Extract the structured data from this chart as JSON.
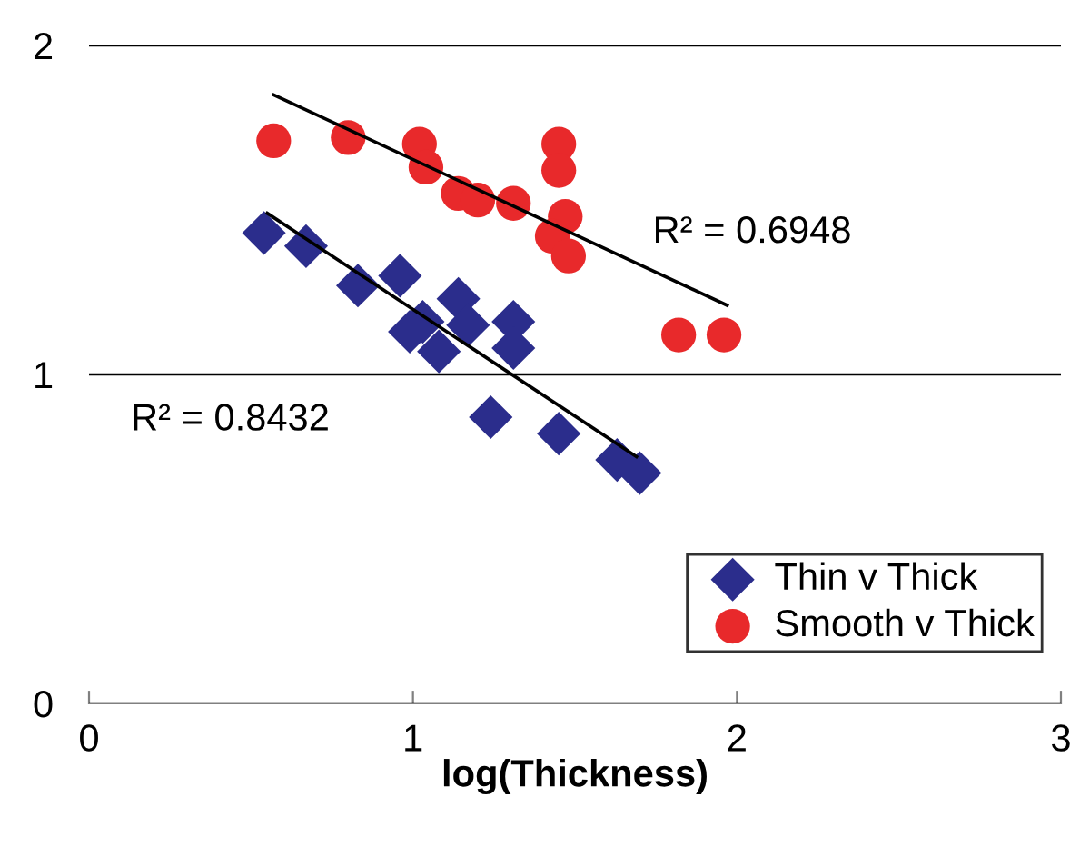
{
  "chart_data": {
    "type": "scatter",
    "xlabel": "log(Thickness)",
    "xlim": [
      0,
      3
    ],
    "xticks": [
      0,
      1,
      2,
      3
    ],
    "ylim": [
      0,
      2
    ],
    "yticks": [
      0,
      1,
      2
    ],
    "grid": "y",
    "legend": "bottom right",
    "series": [
      {
        "name": "Thin v Thick",
        "marker": "diamond",
        "color": "#2b2d8c",
        "x": [
          0.54,
          0.67,
          0.83,
          0.96,
          0.99,
          1.03,
          1.08,
          1.14,
          1.17,
          1.31,
          1.31,
          1.24,
          1.45,
          1.63,
          1.7
        ],
        "values": [
          1.43,
          1.39,
          1.27,
          1.3,
          1.13,
          1.16,
          1.07,
          1.23,
          1.15,
          1.16,
          1.08,
          0.87,
          0.82,
          0.74,
          0.7
        ]
      },
      {
        "name": "Smooth v Thick",
        "marker": "circle",
        "color": "#e8292b",
        "x": [
          0.57,
          0.8,
          1.02,
          1.04,
          1.14,
          1.2,
          1.31,
          1.45,
          1.45,
          1.47,
          1.43,
          1.48,
          1.82,
          1.96
        ],
        "values": [
          1.71,
          1.72,
          1.7,
          1.63,
          1.55,
          1.53,
          1.52,
          1.7,
          1.62,
          1.48,
          1.42,
          1.36,
          1.12,
          1.12
        ]
      },
      {
        "type": "line",
        "color": "#000000",
        "marker": "none",
        "x": [
          0.55,
          1.69
        ],
        "values": [
          1.49,
          0.75
        ]
      },
      {
        "type": "line",
        "color": "#000000",
        "marker": "none",
        "x": [
          0.57,
          1.97
        ],
        "values": [
          1.85,
          1.21
        ]
      }
    ],
    "annotations": [
      "R² = 0.6948",
      "R² = 0.8432"
    ]
  }
}
